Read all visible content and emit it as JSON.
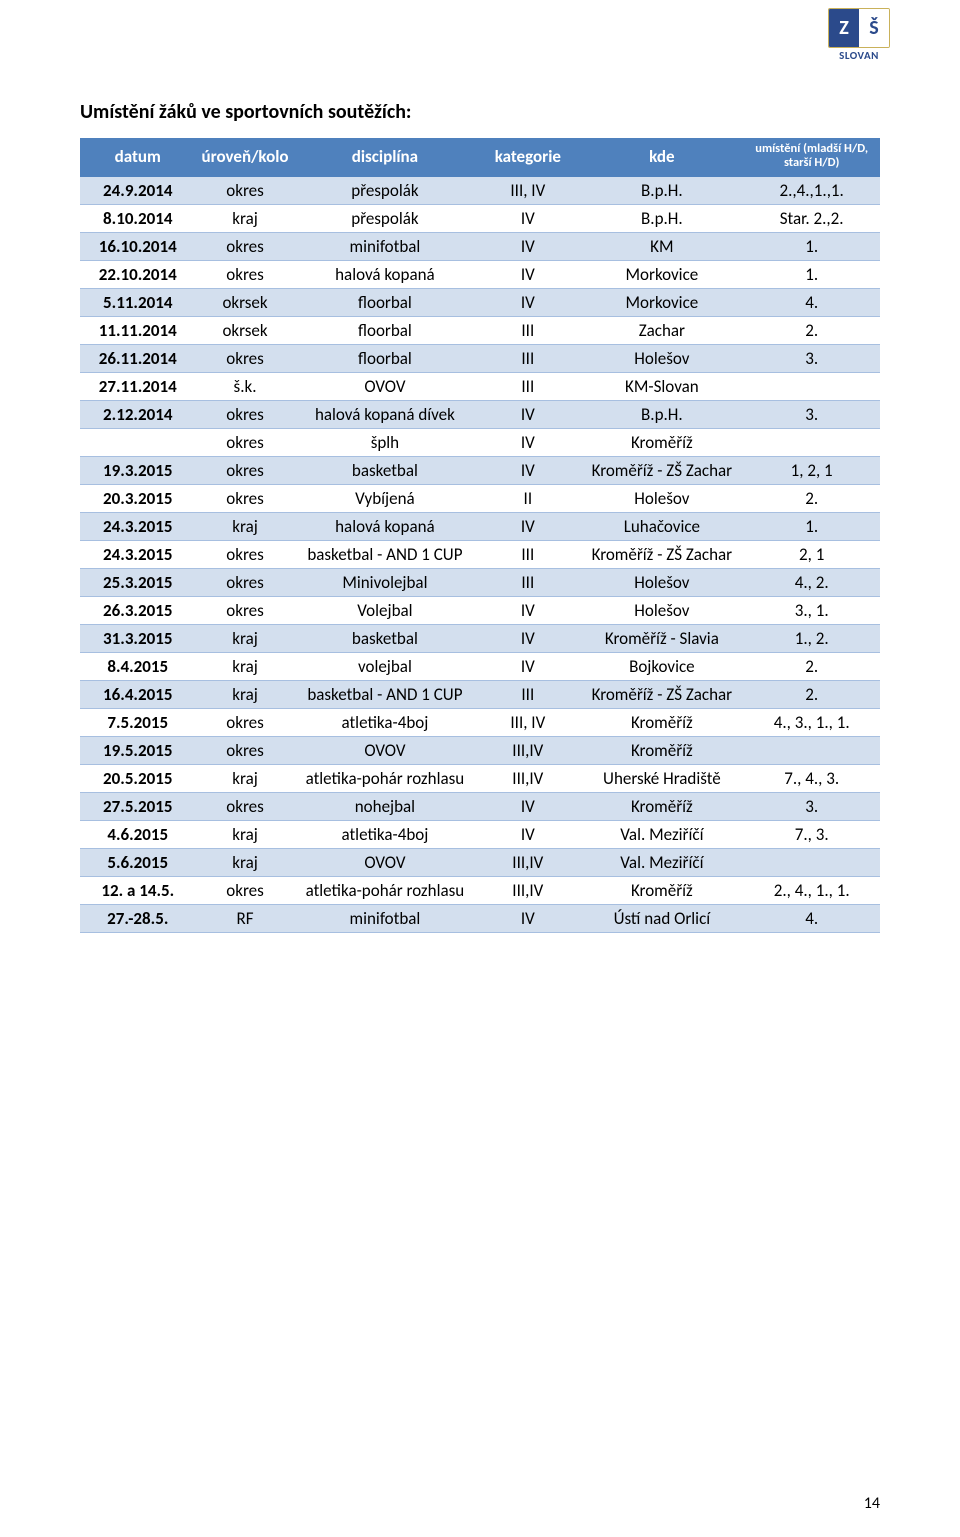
{
  "logo": {
    "left": "Z",
    "right": "Š",
    "label": "SLOVAN"
  },
  "title": "Umístění žáků ve sportovních soutěžích:",
  "headers": {
    "c0": "datum",
    "c1": "úroveň/kolo",
    "c2": "disciplína",
    "c3": "kategorie",
    "c4": "kde",
    "c5": "umístění (mladší H/D, starší H/D)"
  },
  "rows": [
    {
      "c0": "24.9.2014",
      "c1": "okres",
      "c2": "přespolák",
      "c3": "III, IV",
      "c4": "B.p.H.",
      "c5": "2.,4.,1.,1."
    },
    {
      "c0": "8.10.2014",
      "c1": "kraj",
      "c2": "přespolák",
      "c3": "IV",
      "c4": "B.p.H.",
      "c5": "Star. 2.,2."
    },
    {
      "c0": "16.10.2014",
      "c1": "okres",
      "c2": "minifotbal",
      "c3": "IV",
      "c4": "KM",
      "c5": "1."
    },
    {
      "c0": "22.10.2014",
      "c1": "okres",
      "c2": "halová kopaná",
      "c3": "IV",
      "c4": "Morkovice",
      "c5": "1."
    },
    {
      "c0": "5.11.2014",
      "c1": "okrsek",
      "c2": "floorbal",
      "c3": "IV",
      "c4": "Morkovice",
      "c5": "4."
    },
    {
      "c0": "11.11.2014",
      "c1": "okrsek",
      "c2": "floorbal",
      "c3": "III",
      "c4": "Zachar",
      "c5": "2."
    },
    {
      "c0": "26.11.2014",
      "c1": "okres",
      "c2": "floorbal",
      "c3": "III",
      "c4": "Holešov",
      "c5": "3."
    },
    {
      "c0": "27.11.2014",
      "c1": "š.k.",
      "c2": "OVOV",
      "c3": "III",
      "c4": "KM-Slovan",
      "c5": ""
    },
    {
      "c0": "2.12.2014",
      "c1": "okres",
      "c2": "halová kopaná dívek",
      "c3": "IV",
      "c4": "B.p.H.",
      "c5": "3."
    },
    {
      "c0": "",
      "c1": "okres",
      "c2": "šplh",
      "c3": "IV",
      "c4": "Kroměříž",
      "c5": ""
    },
    {
      "c0": "19.3.2015",
      "c1": "okres",
      "c2": "basketbal",
      "c3": "IV",
      "c4": "Kroměříž - ZŠ Zachar",
      "c5": "1, 2, 1"
    },
    {
      "c0": "20.3.2015",
      "c1": "okres",
      "c2": "Vybíjená",
      "c3": "II",
      "c4": "Holešov",
      "c5": "2."
    },
    {
      "c0": "24.3.2015",
      "c1": "kraj",
      "c2": "halová kopaná",
      "c3": "IV",
      "c4": "Luhačovice",
      "c5": "1."
    },
    {
      "c0": "24.3.2015",
      "c1": "okres",
      "c2": "basketbal - AND 1 CUP",
      "c3": "III",
      "c4": "Kroměříž - ZŠ Zachar",
      "c5": "2, 1"
    },
    {
      "c0": "25.3.2015",
      "c1": "okres",
      "c2": "Minivolejbal",
      "c3": "III",
      "c4": "Holešov",
      "c5": "4., 2."
    },
    {
      "c0": "26.3.2015",
      "c1": "okres",
      "c2": "Volejbal",
      "c3": "IV",
      "c4": "Holešov",
      "c5": "3., 1."
    },
    {
      "c0": "31.3.2015",
      "c1": "kraj",
      "c2": "basketbal",
      "c3": "IV",
      "c4": "Kroměříž - Slavia",
      "c5": "1., 2."
    },
    {
      "c0": "8.4.2015",
      "c1": "kraj",
      "c2": "volejbal",
      "c3": "IV",
      "c4": "Bojkovice",
      "c5": "2."
    },
    {
      "c0": "16.4.2015",
      "c1": "kraj",
      "c2": "basketbal - AND 1 CUP",
      "c3": "III",
      "c4": "Kroměříž - ZŠ Zachar",
      "c5": "2."
    },
    {
      "c0": "7.5.2015",
      "c1": "okres",
      "c2": "atletika-4boj",
      "c3": "III, IV",
      "c4": "Kroměříž",
      "c5": "4., 3., 1., 1."
    },
    {
      "c0": "19.5.2015",
      "c1": "okres",
      "c2": "OVOV",
      "c3": "III,IV",
      "c4": "Kroměříž",
      "c5": ""
    },
    {
      "c0": "20.5.2015",
      "c1": "kraj",
      "c2": "atletika-pohár rozhlasu",
      "c3": "III,IV",
      "c4": "Uherské Hradiště",
      "c5": "7., 4., 3."
    },
    {
      "c0": "27.5.2015",
      "c1": "okres",
      "c2": "nohejbal",
      "c3": "IV",
      "c4": "Kroměříž",
      "c5": "3."
    },
    {
      "c0": "4.6.2015",
      "c1": "kraj",
      "c2": "atletika-4boj",
      "c3": "IV",
      "c4": "Val. Meziříčí",
      "c5": "7., 3."
    },
    {
      "c0": "5.6.2015",
      "c1": "kraj",
      "c2": "OVOV",
      "c3": "III,IV",
      "c4": "Val. Meziříčí",
      "c5": ""
    },
    {
      "c0": "12. a 14.5.",
      "c1": "okres",
      "c2": "atletika-pohár rozhlasu",
      "c3": "III,IV",
      "c4": "Kroměříž",
      "c5": "2., 4., 1., 1."
    },
    {
      "c0": "27.-28.5.",
      "c1": "RF",
      "c2": "minifotbal",
      "c3": "IV",
      "c4": "Ústí nad Orlicí",
      "c5": "4."
    }
  ],
  "pageNumber": "14"
}
